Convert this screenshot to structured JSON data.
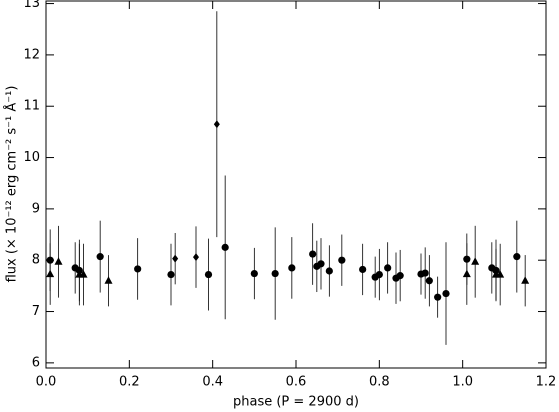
{
  "chart_data": {
    "type": "scatter",
    "xlabel": "phase (P = 2900 d)",
    "ylabel": "flux (× 10⁻¹² erg cm⁻² s⁻¹ Å⁻¹)",
    "xlim": [
      0,
      1.2
    ],
    "ylim": [
      5.9,
      13.05
    ],
    "xticks": [
      {
        "value": 0,
        "label": "0.0"
      },
      0.2,
      0.4,
      0.6,
      0.8,
      {
        "value": 1,
        "label": "1.0"
      },
      1.2
    ],
    "yticks": [
      6,
      7,
      8,
      9,
      10,
      11,
      12,
      13
    ],
    "color": "#000000",
    "series": [
      {
        "marker": "circle",
        "x": [
          0.01,
          0.07,
          0.08,
          0.13,
          0.22,
          0.3,
          0.39,
          0.43,
          0.5,
          0.55,
          0.59,
          0.64,
          0.65,
          0.66,
          0.68,
          0.71,
          0.76,
          0.79,
          0.8,
          0.82,
          0.84,
          0.85,
          0.9,
          0.91,
          0.92,
          0.94,
          0.96,
          1.01,
          1.07,
          1.08,
          1.13
        ],
        "values": [
          8.0,
          7.85,
          7.8,
          8.07,
          7.83,
          7.72,
          7.72,
          8.25,
          7.74,
          7.74,
          7.85,
          8.12,
          7.88,
          7.93,
          7.79,
          8.0,
          7.82,
          7.67,
          7.72,
          7.85,
          7.65,
          7.7,
          7.73,
          7.75,
          7.6,
          7.28,
          7.35,
          8.02,
          7.85,
          7.8,
          8.07
        ],
        "errors": [
          0.6,
          0.5,
          0.6,
          0.7,
          0.6,
          0.6,
          0.7,
          1.4,
          0.5,
          0.9,
          0.6,
          0.6,
          0.5,
          0.5,
          0.5,
          0.5,
          0.5,
          0.4,
          0.5,
          0.5,
          0.5,
          0.5,
          0.4,
          0.5,
          0.5,
          0.4,
          1.0,
          0.5,
          0.5,
          0.6,
          0.7
        ]
      },
      {
        "marker": "triangle",
        "x": [
          0.01,
          0.03,
          0.08,
          0.09,
          0.15,
          1.01,
          1.03,
          1.08,
          1.09,
          1.15
        ],
        "values": [
          7.73,
          7.97,
          7.72,
          7.72,
          7.6,
          7.73,
          7.97,
          7.72,
          7.72,
          7.6
        ],
        "errors": [
          0.6,
          0.7,
          0.6,
          0.6,
          0.5,
          0.6,
          0.7,
          0.5,
          0.6,
          0.5
        ]
      },
      {
        "marker": "diamond",
        "x": [
          0.31,
          0.36,
          0.41
        ],
        "values": [
          8.03,
          8.06,
          10.65
        ],
        "errors": [
          0.5,
          0.6,
          2.2
        ]
      }
    ]
  }
}
